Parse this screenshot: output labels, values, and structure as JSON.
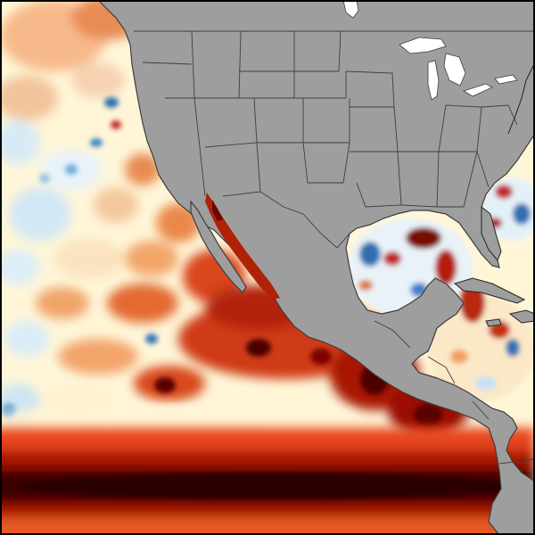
{
  "map": {
    "colors": {
      "land": "#9e9e9e",
      "land_border": "#4a4a4a",
      "lakes": "#ffffff",
      "frame": "#000000",
      "anomaly_scale": [
        "#08306b",
        "#2171b5",
        "#6baed6",
        "#c6dbef",
        "#ffffff",
        "#fff3c4",
        "#fdd49e",
        "#f4a261",
        "#e8572a",
        "#c21f0a",
        "#7f0000",
        "#3a0000"
      ]
    }
  }
}
